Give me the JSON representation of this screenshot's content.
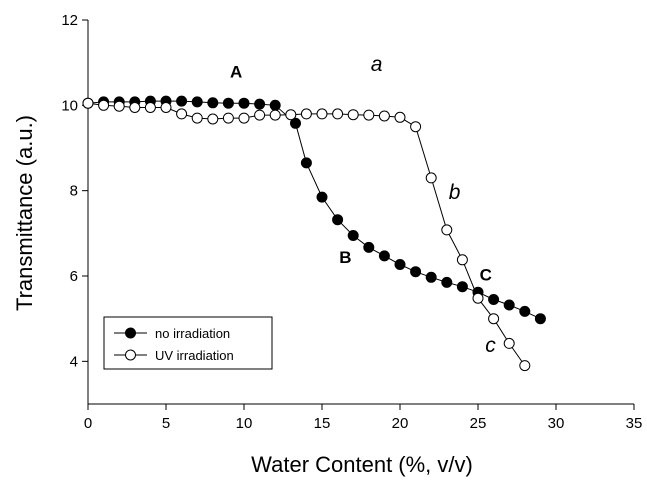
{
  "chart_data": {
    "type": "scatter",
    "xlabel": "Water Content (%, v/v)",
    "ylabel": "Transmittance (a.u.)",
    "xlim": [
      0,
      35
    ],
    "ylim": [
      3,
      12
    ],
    "xticks": [
      0,
      5,
      10,
      15,
      20,
      25,
      30,
      35
    ],
    "yticks": [
      4,
      6,
      8,
      10,
      12
    ],
    "grid": false,
    "legend_position": "bottom-left",
    "series": [
      {
        "name": "no irradiation",
        "marker": "filled-circle",
        "color": "#000000",
        "points": [
          [
            0,
            10.05
          ],
          [
            1,
            10.08
          ],
          [
            2,
            10.08
          ],
          [
            3,
            10.08
          ],
          [
            4,
            10.1
          ],
          [
            5,
            10.1
          ],
          [
            6,
            10.1
          ],
          [
            7,
            10.08
          ],
          [
            8,
            10.06
          ],
          [
            9,
            10.05
          ],
          [
            10,
            10.05
          ],
          [
            11,
            10.03
          ],
          [
            12,
            10.0
          ],
          [
            13.3,
            9.58
          ],
          [
            14,
            8.65
          ],
          [
            15,
            7.85
          ],
          [
            16,
            7.32
          ],
          [
            17,
            6.95
          ],
          [
            18,
            6.67
          ],
          [
            19,
            6.47
          ],
          [
            20,
            6.27
          ],
          [
            21,
            6.1
          ],
          [
            22,
            5.97
          ],
          [
            23,
            5.85
          ],
          [
            24,
            5.75
          ],
          [
            25,
            5.62
          ],
          [
            26,
            5.45
          ],
          [
            27,
            5.32
          ],
          [
            28,
            5.17
          ],
          [
            29,
            5.0
          ]
        ]
      },
      {
        "name": "UV irradiation",
        "marker": "open-circle",
        "color": "#000000",
        "points": [
          [
            0,
            10.05
          ],
          [
            1,
            10.0
          ],
          [
            2,
            9.98
          ],
          [
            3,
            9.95
          ],
          [
            4,
            9.95
          ],
          [
            5,
            9.95
          ],
          [
            6,
            9.8
          ],
          [
            7,
            9.7
          ],
          [
            8,
            9.68
          ],
          [
            9,
            9.7
          ],
          [
            10,
            9.7
          ],
          [
            11,
            9.77
          ],
          [
            12,
            9.77
          ],
          [
            13,
            9.78
          ],
          [
            14,
            9.8
          ],
          [
            15,
            9.8
          ],
          [
            16,
            9.8
          ],
          [
            17,
            9.78
          ],
          [
            18,
            9.77
          ],
          [
            19,
            9.75
          ],
          [
            20,
            9.72
          ],
          [
            21,
            9.5
          ],
          [
            22,
            8.3
          ],
          [
            23,
            7.08
          ],
          [
            24,
            6.38
          ],
          [
            25,
            5.48
          ],
          [
            26,
            5.0
          ],
          [
            27,
            4.42
          ],
          [
            28,
            3.9
          ]
        ]
      }
    ],
    "annotations": [
      {
        "text": "A",
        "x": 9.5,
        "y": 10.65,
        "style": "bold"
      },
      {
        "text": "B",
        "x": 16.5,
        "y": 6.3,
        "style": "bold"
      },
      {
        "text": "C",
        "x": 25.5,
        "y": 5.9,
        "style": "bold"
      },
      {
        "text": "a",
        "x": 18.5,
        "y": 10.8,
        "style": "italic"
      },
      {
        "text": "b",
        "x": 23.5,
        "y": 7.8,
        "style": "italic"
      },
      {
        "text": "c",
        "x": 25.8,
        "y": 4.22,
        "style": "italic"
      }
    ]
  }
}
